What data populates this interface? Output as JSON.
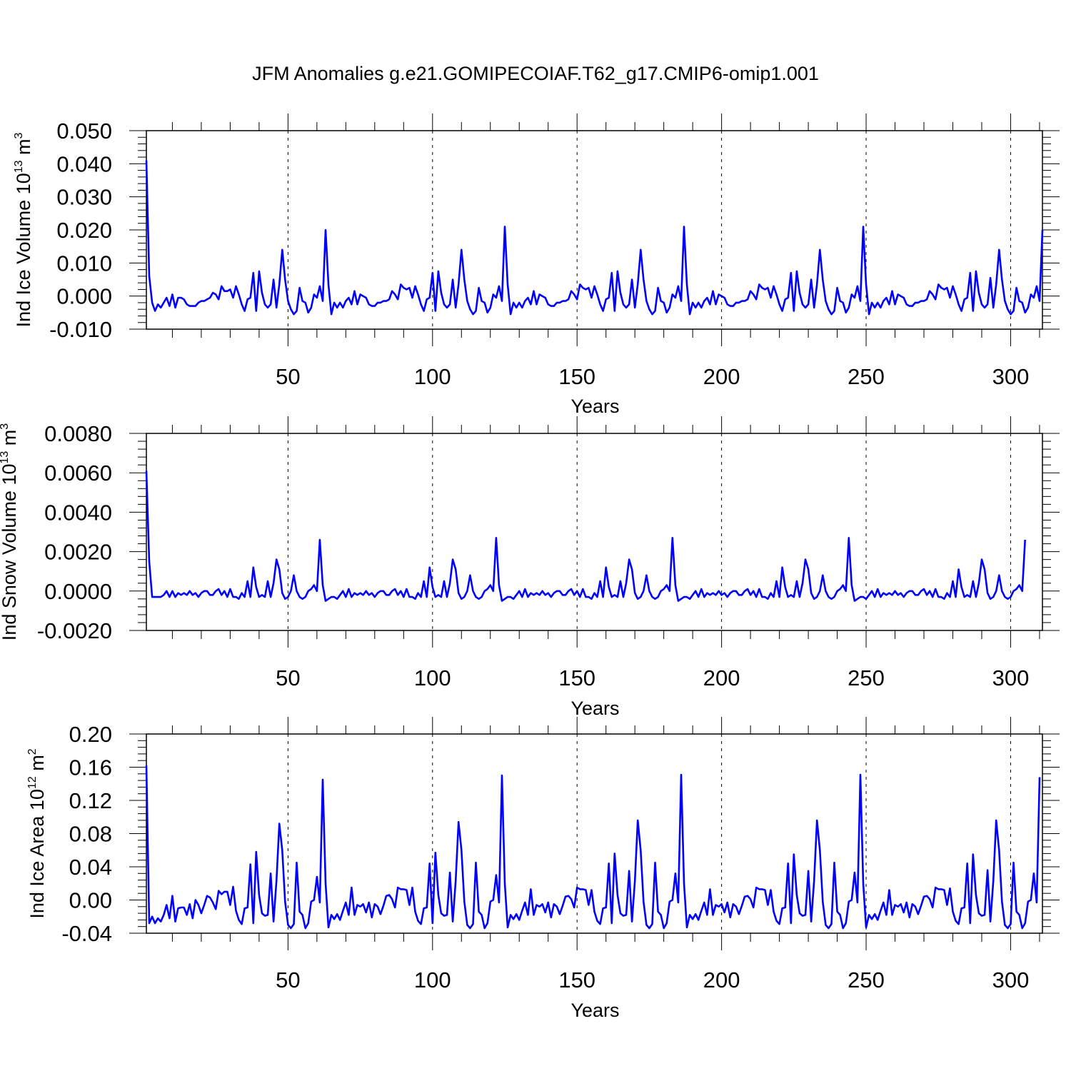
{
  "title": "JFM Anomalies g.e21.GOMIPECOIAF.T62_g17.CMIP6-omip1.001",
  "colors": {
    "line": "#0000ff",
    "axes": "#000000",
    "grid": "#000000"
  },
  "chart_data": [
    {
      "type": "line",
      "xlabel": "Years",
      "ylabel": {
        "text": "Ind Ice Volume 10",
        "exp": "13",
        "unit": " m",
        "unit_exp": "3"
      },
      "xlim": [
        1,
        311
      ],
      "ylim": [
        -0.01,
        0.05
      ],
      "x_ticks": [
        50,
        100,
        150,
        200,
        250,
        300
      ],
      "y_ticks": [
        -0.01,
        0.0,
        0.01,
        0.02,
        0.03,
        0.04,
        0.05
      ],
      "y_tick_labels": [
        "-0.010",
        "0.000",
        "0.010",
        "0.020",
        "0.030",
        "0.040",
        "0.050"
      ],
      "grid": "dashed vertical lines at x ticks",
      "x_start": 1,
      "values": [
        0.041,
        0.006,
        -0.002,
        -0.0045,
        -0.0025,
        -0.0035,
        -0.002,
        -0.0005,
        -0.003,
        0.0005,
        -0.0035,
        -0.0005,
        -0.0005,
        -0.001,
        -0.0025,
        -0.003,
        -0.003,
        -0.003,
        -0.002,
        -0.0015,
        -0.0015,
        -0.001,
        -0.0005,
        0.001,
        0.0005,
        -0.001,
        0.003,
        0.0015,
        0.0015,
        0.002,
        -0.0005,
        0.003,
        0.0005,
        -0.0025,
        -0.0045,
        -0.001,
        -0.0005,
        0.007,
        -0.0045,
        0.0075,
        0.001,
        -0.0025,
        -0.0035,
        -0.0025,
        0.005,
        -0.0035,
        0.0035,
        0.014,
        0.005,
        -0.0015,
        -0.004,
        -0.0055,
        -0.0045,
        0.0025,
        -0.0015,
        -0.002,
        -0.005,
        -0.0035,
        0.0005,
        -0.0005,
        0.003,
        -0.0015,
        0.02,
        0.0035,
        -0.0055,
        -0.002,
        -0.0035,
        -0.002,
        -0.0035,
        -0.0015,
        -0.0005,
        -0.0025,
        0.0015,
        -0.0025,
        0.0005,
        0.0,
        -0.0005,
        -0.0025,
        -0.003,
        -0.003,
        -0.002,
        -0.002,
        -0.0015,
        -0.0015,
        -0.001,
        0.0015,
        0.0005,
        -0.001,
        0.0035,
        0.0025,
        0.002,
        0.0025,
        -0.0005,
        0.003,
        0.0005,
        -0.0025,
        -0.0045,
        -0.001,
        -0.0005,
        0.007,
        -0.0045,
        0.0075,
        0.001,
        -0.0025,
        -0.0035,
        -0.0025,
        0.005,
        -0.0035,
        0.0035,
        0.014,
        0.005,
        -0.0015,
        -0.004,
        -0.0055,
        -0.0045,
        0.0025,
        -0.0015,
        -0.002,
        -0.005,
        -0.0035,
        0.0005,
        -0.0005,
        0.003,
        -0.0015,
        0.021,
        0.0035,
        -0.0055,
        -0.002,
        -0.0035,
        -0.002,
        -0.0035,
        -0.0015,
        -0.0005,
        -0.0025,
        0.0015,
        -0.0025,
        0.0005,
        0.0,
        -0.0005,
        -0.0025,
        -0.003,
        -0.003,
        -0.002,
        -0.002,
        -0.0015,
        -0.0015,
        -0.001,
        0.0015,
        0.0005,
        -0.001,
        0.0035,
        0.0025,
        0.002,
        0.0025,
        -0.0005,
        0.003,
        0.0005,
        -0.0025,
        -0.0045,
        -0.001,
        -0.0005,
        0.007,
        -0.0045,
        0.0075,
        0.001,
        -0.0025,
        -0.0035,
        -0.0025,
        0.005,
        -0.0035,
        0.0035,
        0.014,
        0.005,
        -0.0015,
        -0.004,
        -0.0055,
        -0.0045,
        0.0025,
        -0.0015,
        -0.002,
        -0.005,
        -0.0035,
        0.0005,
        -0.0005,
        0.003,
        -0.0015,
        0.021,
        0.0035,
        -0.0055,
        -0.002,
        -0.0035,
        -0.002,
        -0.0035,
        -0.0015,
        -0.0005,
        -0.0025,
        0.0015,
        -0.0025,
        0.0005,
        0.0,
        -0.0005,
        -0.0025,
        -0.003,
        -0.003,
        -0.002,
        -0.002,
        -0.0015,
        -0.0015,
        -0.001,
        0.0015,
        0.0005,
        -0.001,
        0.0035,
        0.0025,
        0.002,
        0.0025,
        -0.0005,
        0.003,
        0.0005,
        -0.0025,
        -0.0045,
        -0.001,
        -0.0005,
        0.007,
        -0.0045,
        0.0075,
        0.001,
        -0.0025,
        -0.0035,
        -0.0025,
        0.005,
        -0.0035,
        0.0035,
        0.014,
        0.005,
        -0.0015,
        -0.004,
        -0.0055,
        -0.0045,
        0.0025,
        -0.0015,
        -0.002,
        -0.005,
        -0.0035,
        0.0005,
        -0.0005,
        0.003,
        -0.0015,
        0.021,
        0.0035,
        -0.0055,
        -0.002,
        -0.0035,
        -0.002,
        -0.0035,
        -0.0015,
        -0.0005,
        -0.0025,
        0.0015,
        -0.0025,
        0.0005,
        0.0,
        -0.0005,
        -0.0025,
        -0.003,
        -0.003,
        -0.002,
        -0.002,
        -0.0015,
        -0.0015,
        -0.001,
        0.0015,
        0.0005,
        -0.001,
        0.0035,
        0.0025,
        0.002,
        0.0025,
        -0.0005,
        0.003,
        0.0005,
        -0.0025,
        -0.0045,
        -0.001,
        -0.0005,
        0.007,
        -0.0045,
        0.0075,
        0.001,
        -0.0025,
        -0.0035,
        -0.0025,
        0.0055,
        -0.0035,
        0.0035,
        0.014,
        0.005,
        -0.0015,
        -0.004,
        -0.0055,
        -0.0045,
        0.0025,
        -0.0015,
        -0.002,
        -0.005,
        -0.0035,
        0.0005,
        -0.0005,
        0.003,
        -0.0015,
        0.02
      ]
    },
    {
      "type": "line",
      "xlabel": "Years",
      "ylabel": {
        "text": "Ind Snow Volume 10",
        "exp": "13",
        "unit": " m",
        "unit_exp": "3"
      },
      "xlim": [
        1,
        311
      ],
      "ylim": [
        -0.002,
        0.008
      ],
      "x_ticks": [
        50,
        100,
        150,
        200,
        250,
        300
      ],
      "y_ticks": [
        -0.002,
        0.0,
        0.002,
        0.004,
        0.006,
        0.008
      ],
      "y_tick_labels": [
        "-0.0020",
        "0.0000",
        "0.0020",
        "0.0040",
        "0.0060",
        "0.0080"
      ],
      "grid": "dashed vertical lines at x ticks",
      "x_start": 1,
      "values": [
        0.0061,
        0.0015,
        -0.0003,
        -0.0003,
        -0.0003,
        -0.0003,
        -0.0002,
        0.0,
        -0.0003,
        0.0,
        -0.0003,
        -0.0001,
        -0.0002,
        -0.0001,
        -0.0002,
        0.0,
        -0.0002,
        -0.0001,
        -0.0003,
        -0.0001,
        0.0,
        0.0,
        -0.0002,
        -0.0002,
        0.0,
        0.0001,
        -0.0002,
        0.0,
        -0.0003,
        0.0001,
        -0.0003,
        -0.0003,
        -0.0004,
        -0.0001,
        -0.0003,
        0.0005,
        -0.0003,
        0.0012,
        0.0002,
        -0.0003,
        -0.0002,
        -0.0003,
        0.0005,
        -0.0003,
        0.0004,
        0.0016,
        0.0011,
        -0.0001,
        -0.0004,
        -0.0003,
        0.0,
        0.0008,
        0.0,
        -0.0003,
        -0.0004,
        -0.0003,
        0.0,
        0.0001,
        0.0003,
        0.0,
        0.0026,
        0.0003,
        -0.0005,
        -0.0004,
        -0.0003,
        -0.0003,
        -0.0004,
        -0.0002,
        0.0,
        -0.0003,
        0.0001,
        -0.0003,
        -0.0001,
        -0.0002,
        -0.0001,
        -0.0002,
        0.0,
        -0.0002,
        -0.0001,
        -0.0003,
        -0.0001,
        0.0,
        0.0,
        -0.0002,
        -0.0002,
        0.0,
        0.0001,
        -0.0002,
        0.0,
        -0.0003,
        0.0001,
        -0.0003,
        -0.0003,
        -0.0004,
        -0.0001,
        -0.0003,
        0.0005,
        -0.0003,
        0.0012,
        0.0002,
        -0.0003,
        -0.0002,
        -0.0003,
        0.0005,
        -0.0003,
        0.0004,
        0.0016,
        0.0011,
        -0.0001,
        -0.0004,
        -0.0003,
        0.0,
        0.0008,
        0.0,
        -0.0003,
        -0.0004,
        -0.0003,
        0.0,
        0.0001,
        0.0003,
        0.0,
        0.0027,
        0.0003,
        -0.0005,
        -0.0004,
        -0.0003,
        -0.0003,
        -0.0004,
        -0.0002,
        0.0,
        -0.0003,
        0.0001,
        -0.0003,
        -0.0001,
        -0.0002,
        -0.0001,
        -0.0002,
        0.0,
        -0.0002,
        -0.0001,
        -0.0003,
        -0.0001,
        0.0,
        0.0,
        -0.0002,
        -0.0002,
        0.0,
        0.0001,
        -0.0002,
        0.0,
        -0.0003,
        0.0001,
        -0.0003,
        -0.0003,
        -0.0004,
        -0.0001,
        -0.0003,
        0.0005,
        -0.0003,
        0.0012,
        0.0002,
        -0.0003,
        -0.0002,
        -0.0003,
        0.0005,
        -0.0003,
        0.0004,
        0.0016,
        0.0011,
        -0.0001,
        -0.0004,
        -0.0003,
        0.0,
        0.0008,
        0.0,
        -0.0003,
        -0.0004,
        -0.0003,
        0.0,
        0.0001,
        0.0003,
        0.0,
        0.0027,
        0.0003,
        -0.0005,
        -0.0004,
        -0.0003,
        -0.0003,
        -0.0004,
        -0.0002,
        0.0,
        -0.0003,
        0.0001,
        -0.0003,
        -0.0001,
        -0.0002,
        -0.0001,
        -0.0002,
        0.0,
        -0.0002,
        -0.0001,
        -0.0003,
        -0.0001,
        0.0,
        0.0,
        -0.0002,
        -0.0002,
        0.0,
        0.0001,
        -0.0002,
        0.0,
        -0.0003,
        0.0001,
        -0.0003,
        -0.0003,
        -0.0004,
        -0.0001,
        -0.0003,
        0.0005,
        -0.0003,
        0.0012,
        0.0002,
        -0.0003,
        -0.0002,
        -0.0003,
        0.0005,
        -0.0003,
        0.0004,
        0.0016,
        0.0011,
        -0.0001,
        -0.0004,
        -0.0003,
        0.0,
        0.0008,
        0.0,
        -0.0003,
        -0.0004,
        -0.0003,
        0.0,
        0.0001,
        0.0003,
        0.0,
        0.0027,
        0.0003,
        -0.0005,
        -0.0004,
        -0.0003,
        -0.0003,
        -0.0004,
        -0.0002,
        0.0,
        -0.0003,
        0.0001,
        -0.0003,
        -0.0001,
        -0.0002,
        -0.0001,
        -0.0002,
        0.0,
        -0.0002,
        -0.0001,
        -0.0003,
        -0.0001,
        0.0,
        0.0,
        -0.0002,
        -0.0002,
        0.0,
        0.0001,
        -0.0002,
        0.0,
        -0.0003,
        0.0001,
        -0.0003,
        -0.0003,
        -0.0004,
        -0.0001,
        -0.0003,
        0.0005,
        -0.0003,
        0.0011,
        0.0002,
        -0.0003,
        -0.0002,
        -0.0003,
        0.0005,
        -0.0003,
        0.0004,
        0.0016,
        0.0011,
        -0.0001,
        -0.0004,
        -0.0003,
        0.0,
        0.0008,
        0.0,
        -0.0003,
        -0.0004,
        -0.0003,
        0.0,
        0.0001,
        0.0003,
        0.0,
        0.0026
      ]
    },
    {
      "type": "line",
      "xlabel": "Years",
      "ylabel": {
        "text": "Ind Ice Area 10",
        "exp": "12",
        "unit": " m",
        "unit_exp": "2"
      },
      "xlim": [
        1,
        311
      ],
      "ylim": [
        -0.04,
        0.2
      ],
      "x_ticks": [
        50,
        100,
        150,
        200,
        250,
        300
      ],
      "y_ticks": [
        -0.04,
        0.0,
        0.04,
        0.08,
        0.12,
        0.16,
        0.2
      ],
      "y_tick_labels": [
        "-0.04",
        "0.00",
        "0.04",
        "0.08",
        "0.12",
        "0.16",
        "0.20"
      ],
      "grid": "dashed vertical lines at x ticks",
      "x_start": 1,
      "values": [
        0.162,
        -0.028,
        -0.02,
        -0.028,
        -0.022,
        -0.026,
        -0.018,
        -0.006,
        -0.022,
        0.005,
        -0.026,
        -0.01,
        -0.009,
        -0.009,
        -0.018,
        -0.005,
        -0.022,
        0.0,
        -0.006,
        -0.016,
        -0.006,
        0.005,
        0.003,
        -0.003,
        -0.011,
        0.011,
        0.007,
        0.01,
        0.01,
        -0.006,
        0.016,
        -0.013,
        -0.024,
        -0.029,
        -0.01,
        -0.009,
        0.043,
        -0.028,
        0.058,
        0.006,
        -0.016,
        -0.019,
        -0.018,
        0.032,
        -0.026,
        0.023,
        0.092,
        0.06,
        -0.002,
        -0.03,
        -0.034,
        -0.029,
        0.045,
        -0.014,
        -0.018,
        -0.034,
        -0.028,
        -0.002,
        0.0,
        0.028,
        -0.003,
        0.145,
        0.02,
        -0.033,
        -0.018,
        -0.023,
        -0.017,
        -0.024,
        -0.013,
        -0.003,
        -0.018,
        0.015,
        -0.018,
        -0.006,
        -0.008,
        -0.005,
        -0.015,
        -0.003,
        -0.021,
        -0.005,
        -0.008,
        -0.017,
        -0.007,
        0.005,
        0.006,
        0.001,
        -0.009,
        0.015,
        0.013,
        0.013,
        0.012,
        -0.006,
        0.015,
        -0.014,
        -0.025,
        -0.029,
        -0.01,
        -0.009,
        0.044,
        -0.028,
        0.057,
        0.006,
        -0.016,
        -0.019,
        -0.018,
        0.033,
        -0.026,
        0.023,
        0.094,
        0.06,
        -0.002,
        -0.03,
        -0.034,
        -0.029,
        0.045,
        -0.014,
        -0.018,
        -0.034,
        -0.028,
        -0.002,
        0.0,
        0.03,
        -0.003,
        0.15,
        0.02,
        -0.033,
        -0.018,
        -0.023,
        -0.017,
        -0.024,
        -0.013,
        -0.003,
        -0.018,
        0.013,
        -0.018,
        -0.006,
        -0.008,
        -0.005,
        -0.015,
        -0.003,
        -0.021,
        -0.005,
        -0.008,
        -0.017,
        -0.007,
        0.004,
        0.005,
        0.001,
        -0.009,
        0.015,
        0.013,
        0.013,
        0.012,
        -0.006,
        0.012,
        -0.014,
        -0.025,
        -0.029,
        -0.01,
        -0.009,
        0.044,
        -0.028,
        0.056,
        0.006,
        -0.016,
        -0.019,
        -0.018,
        0.035,
        -0.026,
        0.023,
        0.096,
        0.06,
        -0.002,
        -0.03,
        -0.034,
        -0.029,
        0.045,
        -0.014,
        -0.018,
        -0.034,
        -0.028,
        -0.002,
        0.0,
        0.032,
        -0.003,
        0.151,
        0.02,
        -0.033,
        -0.018,
        -0.023,
        -0.017,
        -0.024,
        -0.013,
        -0.003,
        -0.018,
        0.013,
        -0.018,
        -0.006,
        -0.008,
        -0.005,
        -0.015,
        -0.003,
        -0.021,
        -0.005,
        -0.008,
        -0.017,
        -0.007,
        0.004,
        0.005,
        0.001,
        -0.009,
        0.015,
        0.013,
        0.013,
        0.012,
        -0.006,
        0.012,
        -0.014,
        -0.025,
        -0.029,
        -0.01,
        -0.009,
        0.044,
        -0.028,
        0.055,
        0.006,
        -0.016,
        -0.019,
        -0.018,
        0.035,
        -0.026,
        0.023,
        0.096,
        0.06,
        -0.002,
        -0.03,
        -0.034,
        -0.029,
        0.045,
        -0.014,
        -0.018,
        -0.034,
        -0.028,
        -0.002,
        0.0,
        0.033,
        -0.003,
        0.151,
        0.02,
        -0.033,
        -0.018,
        -0.023,
        -0.017,
        -0.024,
        -0.013,
        -0.003,
        -0.018,
        0.012,
        -0.018,
        -0.006,
        -0.008,
        -0.005,
        -0.015,
        -0.003,
        -0.021,
        -0.005,
        -0.008,
        -0.017,
        -0.007,
        0.004,
        0.005,
        0.001,
        -0.009,
        0.015,
        0.013,
        0.013,
        0.012,
        -0.006,
        0.014,
        -0.014,
        -0.025,
        -0.029,
        -0.01,
        -0.009,
        0.044,
        -0.028,
        0.055,
        0.006,
        -0.016,
        -0.019,
        -0.018,
        0.036,
        -0.026,
        0.023,
        0.096,
        0.06,
        -0.002,
        -0.03,
        -0.034,
        -0.029,
        0.045,
        -0.014,
        -0.018,
        -0.034,
        -0.028,
        -0.002,
        0.0,
        0.032,
        -0.003,
        0.148
      ]
    }
  ]
}
